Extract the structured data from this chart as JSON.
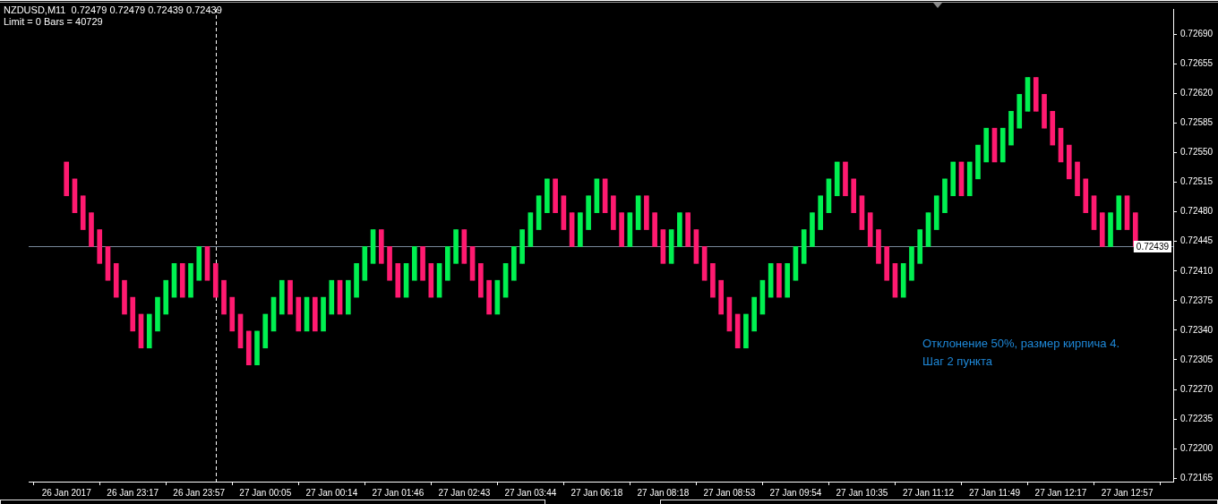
{
  "chart_data": {
    "type": "candlestick",
    "title": "NZDUSD,M11  0.72479 0.72479 0.72439 0.72439",
    "subtitle": "Limit = 0 Bars = 40729",
    "categories": [
      "26 Jan 2017",
      null,
      null,
      null,
      null,
      null,
      null,
      null,
      "26 Jan 23:17",
      null,
      null,
      null,
      null,
      null,
      null,
      null,
      "26 Jan 23:57",
      null,
      null,
      null,
      null,
      null,
      null,
      null,
      "27 Jan 00:05",
      null,
      null,
      null,
      null,
      null,
      null,
      null,
      "27 Jan 00:14",
      null,
      null,
      null,
      null,
      null,
      null,
      null,
      "27 Jan 01:46",
      null,
      null,
      null,
      null,
      null,
      null,
      null,
      "27 Jan 02:43",
      null,
      null,
      null,
      null,
      null,
      null,
      null,
      "27 Jan 03:44",
      null,
      null,
      null,
      null,
      null,
      null,
      null,
      "27 Jan 06:18",
      null,
      null,
      null,
      null,
      null,
      null,
      null,
      "27 Jan 08:18",
      null,
      null,
      null,
      null,
      null,
      null,
      null,
      "27 Jan 08:53",
      null,
      null,
      null,
      null,
      null,
      null,
      null,
      "27 Jan 09:54",
      null,
      null,
      null,
      null,
      null,
      null,
      null,
      "27 Jan 10:35",
      null,
      null,
      null,
      null,
      null,
      null,
      null,
      "27 Jan 11:12",
      null,
      null,
      null,
      null,
      null,
      null,
      null,
      "27 Jan 11:49",
      null,
      null,
      null,
      null,
      null,
      null,
      null,
      "27 Jan 12:17",
      null,
      null,
      null,
      null,
      null,
      null,
      null,
      "27 Jan 12:57",
      null
    ],
    "ohlc": [
      [
        0.72539,
        0.72539,
        0.72499,
        0.72499
      ],
      [
        0.72519,
        0.72519,
        0.72479,
        0.72479
      ],
      [
        0.72499,
        0.72499,
        0.72459,
        0.72459
      ],
      [
        0.72479,
        0.72479,
        0.72439,
        0.72439
      ],
      [
        0.72459,
        0.72459,
        0.72419,
        0.72419
      ],
      [
        0.72439,
        0.72439,
        0.72399,
        0.72399
      ],
      [
        0.72419,
        0.72419,
        0.72379,
        0.72379
      ],
      [
        0.72399,
        0.72399,
        0.72359,
        0.72359
      ],
      [
        0.72379,
        0.72379,
        0.72339,
        0.72339
      ],
      [
        0.72359,
        0.72359,
        0.72319,
        0.72319
      ],
      [
        0.72319,
        0.72359,
        0.72319,
        0.72359
      ],
      [
        0.72339,
        0.72379,
        0.72339,
        0.72379
      ],
      [
        0.72359,
        0.72399,
        0.72359,
        0.72399
      ],
      [
        0.72379,
        0.72419,
        0.72379,
        0.72419
      ],
      [
        0.72419,
        0.72419,
        0.72379,
        0.72379
      ],
      [
        0.72379,
        0.72419,
        0.72379,
        0.72419
      ],
      [
        0.72399,
        0.72439,
        0.72399,
        0.72439
      ],
      [
        0.72439,
        0.72439,
        0.72399,
        0.72399
      ],
      [
        0.72419,
        0.72419,
        0.72379,
        0.72379
      ],
      [
        0.72399,
        0.72399,
        0.72359,
        0.72359
      ],
      [
        0.72379,
        0.72379,
        0.72339,
        0.72339
      ],
      [
        0.72359,
        0.72359,
        0.72319,
        0.72319
      ],
      [
        0.72339,
        0.72339,
        0.72299,
        0.72299
      ],
      [
        0.72299,
        0.72339,
        0.72299,
        0.72339
      ],
      [
        0.72319,
        0.72359,
        0.72319,
        0.72359
      ],
      [
        0.72339,
        0.72379,
        0.72339,
        0.72379
      ],
      [
        0.72359,
        0.72399,
        0.72359,
        0.72399
      ],
      [
        0.72399,
        0.72399,
        0.72359,
        0.72359
      ],
      [
        0.72379,
        0.72379,
        0.72339,
        0.72339
      ],
      [
        0.72339,
        0.72379,
        0.72339,
        0.72379
      ],
      [
        0.72379,
        0.72379,
        0.72339,
        0.72339
      ],
      [
        0.72339,
        0.72379,
        0.72339,
        0.72379
      ],
      [
        0.72359,
        0.72399,
        0.72359,
        0.72399
      ],
      [
        0.72399,
        0.72399,
        0.72359,
        0.72359
      ],
      [
        0.72359,
        0.72399,
        0.72359,
        0.72399
      ],
      [
        0.72379,
        0.72419,
        0.72379,
        0.72419
      ],
      [
        0.72399,
        0.72439,
        0.72399,
        0.72439
      ],
      [
        0.72419,
        0.72459,
        0.72419,
        0.72459
      ],
      [
        0.72459,
        0.72459,
        0.72419,
        0.72419
      ],
      [
        0.72439,
        0.72439,
        0.72399,
        0.72399
      ],
      [
        0.72419,
        0.72419,
        0.72379,
        0.72379
      ],
      [
        0.72379,
        0.72419,
        0.72379,
        0.72419
      ],
      [
        0.72399,
        0.72439,
        0.72399,
        0.72439
      ],
      [
        0.72439,
        0.72439,
        0.72399,
        0.72399
      ],
      [
        0.72419,
        0.72419,
        0.72379,
        0.72379
      ],
      [
        0.72379,
        0.72419,
        0.72379,
        0.72419
      ],
      [
        0.72399,
        0.72439,
        0.72399,
        0.72439
      ],
      [
        0.72419,
        0.72459,
        0.72419,
        0.72459
      ],
      [
        0.72459,
        0.72459,
        0.72419,
        0.72419
      ],
      [
        0.72439,
        0.72439,
        0.72399,
        0.72399
      ],
      [
        0.72419,
        0.72419,
        0.72379,
        0.72379
      ],
      [
        0.72399,
        0.72399,
        0.72359,
        0.72359
      ],
      [
        0.72359,
        0.72399,
        0.72359,
        0.72399
      ],
      [
        0.72379,
        0.72419,
        0.72379,
        0.72419
      ],
      [
        0.72399,
        0.72439,
        0.72399,
        0.72439
      ],
      [
        0.72419,
        0.72459,
        0.72419,
        0.72459
      ],
      [
        0.72439,
        0.72479,
        0.72439,
        0.72479
      ],
      [
        0.72459,
        0.72499,
        0.72459,
        0.72499
      ],
      [
        0.72479,
        0.72519,
        0.72479,
        0.72519
      ],
      [
        0.72519,
        0.72519,
        0.72479,
        0.72479
      ],
      [
        0.72499,
        0.72499,
        0.72459,
        0.72459
      ],
      [
        0.72479,
        0.72479,
        0.72439,
        0.72439
      ],
      [
        0.72439,
        0.72479,
        0.72439,
        0.72479
      ],
      [
        0.72459,
        0.72499,
        0.72459,
        0.72499
      ],
      [
        0.72479,
        0.72519,
        0.72479,
        0.72519
      ],
      [
        0.72519,
        0.72519,
        0.72479,
        0.72479
      ],
      [
        0.72499,
        0.72499,
        0.72459,
        0.72459
      ],
      [
        0.72479,
        0.72479,
        0.72439,
        0.72439
      ],
      [
        0.72439,
        0.72479,
        0.72439,
        0.72479
      ],
      [
        0.72459,
        0.72499,
        0.72459,
        0.72499
      ],
      [
        0.72499,
        0.72499,
        0.72459,
        0.72459
      ],
      [
        0.72479,
        0.72479,
        0.72439,
        0.72439
      ],
      [
        0.72459,
        0.72459,
        0.72419,
        0.72419
      ],
      [
        0.72419,
        0.72459,
        0.72419,
        0.72459
      ],
      [
        0.72439,
        0.72479,
        0.72439,
        0.72479
      ],
      [
        0.72479,
        0.72479,
        0.72439,
        0.72439
      ],
      [
        0.72459,
        0.72459,
        0.72419,
        0.72419
      ],
      [
        0.72439,
        0.72439,
        0.72399,
        0.72399
      ],
      [
        0.72419,
        0.72419,
        0.72379,
        0.72379
      ],
      [
        0.72399,
        0.72399,
        0.72359,
        0.72359
      ],
      [
        0.72379,
        0.72379,
        0.72339,
        0.72339
      ],
      [
        0.72359,
        0.72359,
        0.72319,
        0.72319
      ],
      [
        0.72319,
        0.72359,
        0.72319,
        0.72359
      ],
      [
        0.72339,
        0.72379,
        0.72339,
        0.72379
      ],
      [
        0.72359,
        0.72399,
        0.72359,
        0.72399
      ],
      [
        0.72379,
        0.72419,
        0.72379,
        0.72419
      ],
      [
        0.72419,
        0.72419,
        0.72379,
        0.72379
      ],
      [
        0.72379,
        0.72419,
        0.72379,
        0.72419
      ],
      [
        0.72399,
        0.72439,
        0.72399,
        0.72439
      ],
      [
        0.72419,
        0.72459,
        0.72419,
        0.72459
      ],
      [
        0.72439,
        0.72479,
        0.72439,
        0.72479
      ],
      [
        0.72459,
        0.72499,
        0.72459,
        0.72499
      ],
      [
        0.72479,
        0.72519,
        0.72479,
        0.72519
      ],
      [
        0.72499,
        0.72539,
        0.72499,
        0.72539
      ],
      [
        0.72539,
        0.72539,
        0.72499,
        0.72499
      ],
      [
        0.72519,
        0.72519,
        0.72479,
        0.72479
      ],
      [
        0.72499,
        0.72499,
        0.72459,
        0.72459
      ],
      [
        0.72479,
        0.72479,
        0.72439,
        0.72439
      ],
      [
        0.72459,
        0.72459,
        0.72419,
        0.72419
      ],
      [
        0.72439,
        0.72439,
        0.72399,
        0.72399
      ],
      [
        0.72419,
        0.72419,
        0.72379,
        0.72379
      ],
      [
        0.72379,
        0.72419,
        0.72379,
        0.72419
      ],
      [
        0.72399,
        0.72439,
        0.72399,
        0.72439
      ],
      [
        0.72419,
        0.72459,
        0.72419,
        0.72459
      ],
      [
        0.72439,
        0.72479,
        0.72439,
        0.72479
      ],
      [
        0.72459,
        0.72499,
        0.72459,
        0.72499
      ],
      [
        0.72479,
        0.72519,
        0.72479,
        0.72519
      ],
      [
        0.72499,
        0.72539,
        0.72499,
        0.72539
      ],
      [
        0.72539,
        0.72539,
        0.72499,
        0.72499
      ],
      [
        0.72499,
        0.72539,
        0.72499,
        0.72539
      ],
      [
        0.72519,
        0.72559,
        0.72519,
        0.72559
      ],
      [
        0.72539,
        0.72579,
        0.72539,
        0.72579
      ],
      [
        0.72579,
        0.72579,
        0.72539,
        0.72539
      ],
      [
        0.72539,
        0.72579,
        0.72539,
        0.72579
      ],
      [
        0.72559,
        0.72599,
        0.72559,
        0.72599
      ],
      [
        0.72579,
        0.72619,
        0.72579,
        0.72619
      ],
      [
        0.72599,
        0.72639,
        0.72599,
        0.72639
      ],
      [
        0.72639,
        0.72639,
        0.72599,
        0.72599
      ],
      [
        0.72619,
        0.72619,
        0.72579,
        0.72579
      ],
      [
        0.72599,
        0.72599,
        0.72559,
        0.72559
      ],
      [
        0.72579,
        0.72579,
        0.72539,
        0.72539
      ],
      [
        0.72559,
        0.72559,
        0.72519,
        0.72519
      ],
      [
        0.72539,
        0.72539,
        0.72499,
        0.72499
      ],
      [
        0.72519,
        0.72519,
        0.72479,
        0.72479
      ],
      [
        0.72499,
        0.72499,
        0.72459,
        0.72459
      ],
      [
        0.72479,
        0.72479,
        0.72439,
        0.72439
      ],
      [
        0.72439,
        0.72479,
        0.72439,
        0.72479
      ],
      [
        0.72459,
        0.72499,
        0.72459,
        0.72499
      ],
      [
        0.72499,
        0.72499,
        0.72459,
        0.72459
      ],
      [
        0.72479,
        0.72479,
        0.72439,
        0.72439
      ]
    ],
    "colors": [
      "#ff1a70",
      "#ff1a70",
      "#ff1a70",
      "#ff1a70",
      "#ff1a70",
      "#ff1a70",
      "#ff1a70",
      "#ff1a70",
      "#ff1a70",
      "#ff1a70",
      "#00f050",
      "#00f050",
      "#00f050",
      "#00f050",
      "#ff1a70",
      "#00f050",
      "#00f050",
      "#ff1a70",
      "#ff1a70",
      "#ff1a70",
      "#ff1a70",
      "#ff1a70",
      "#ff1a70",
      "#00f050",
      "#00f050",
      "#00f050",
      "#00f050",
      "#ff1a70",
      "#ff1a70",
      "#00f050",
      "#ff1a70",
      "#00f050",
      "#00f050",
      "#ff1a70",
      "#00f050",
      "#00f050",
      "#00f050",
      "#00f050",
      "#ff1a70",
      "#ff1a70",
      "#ff1a70",
      "#00f050",
      "#00f050",
      "#ff1a70",
      "#ff1a70",
      "#00f050",
      "#00f050",
      "#00f050",
      "#ff1a70",
      "#ff1a70",
      "#ff1a70",
      "#ff1a70",
      "#00f050",
      "#00f050",
      "#00f050",
      "#00f050",
      "#00f050",
      "#00f050",
      "#00f050",
      "#ff1a70",
      "#ff1a70",
      "#ff1a70",
      "#00f050",
      "#00f050",
      "#00f050",
      "#ff1a70",
      "#ff1a70",
      "#ff1a70",
      "#00f050",
      "#00f050",
      "#ff1a70",
      "#ff1a70",
      "#ff1a70",
      "#00f050",
      "#00f050",
      "#ff1a70",
      "#ff1a70",
      "#ff1a70",
      "#ff1a70",
      "#ff1a70",
      "#ff1a70",
      "#ff1a70",
      "#00f050",
      "#00f050",
      "#00f050",
      "#00f050",
      "#ff1a70",
      "#00f050",
      "#00f050",
      "#00f050",
      "#00f050",
      "#00f050",
      "#00f050",
      "#00f050",
      "#ff1a70",
      "#ff1a70",
      "#ff1a70",
      "#ff1a70",
      "#ff1a70",
      "#ff1a70",
      "#ff1a70",
      "#00f050",
      "#00f050",
      "#00f050",
      "#00f050",
      "#00f050",
      "#00f050",
      "#00f050",
      "#ff1a70",
      "#00f050",
      "#00f050",
      "#00f050",
      "#ff1a70",
      "#00f050",
      "#00f050",
      "#00f050",
      "#00f050",
      "#ff1a70",
      "#ff1a70",
      "#ff1a70",
      "#ff1a70",
      "#ff1a70",
      "#ff1a70",
      "#ff1a70",
      "#ff1a70",
      "#ff1a70",
      "#00f050",
      "#00f050",
      "#ff1a70",
      "#ff1a70"
    ],
    "ylim": [
      0.72161,
      0.7272
    ],
    "yticks": [
      {
        "value": 0.72165,
        "label": "0.72165"
      },
      {
        "value": 0.722,
        "label": "0.72200"
      },
      {
        "value": 0.72235,
        "label": "0.72235"
      },
      {
        "value": 0.7227,
        "label": "0.72270"
      },
      {
        "value": 0.72305,
        "label": "0.72305"
      },
      {
        "value": 0.7234,
        "label": "0.72340"
      },
      {
        "value": 0.72375,
        "label": "0.72375"
      },
      {
        "value": 0.7241,
        "label": "0.72410"
      },
      {
        "value": 0.72445,
        "label": "0.72445"
      },
      {
        "value": 0.7248,
        "label": "0.72480"
      },
      {
        "value": 0.72515,
        "label": "0.72515"
      },
      {
        "value": 0.7255,
        "label": "0.72550"
      },
      {
        "value": 0.72585,
        "label": "0.72585"
      },
      {
        "value": 0.7262,
        "label": "0.72620"
      },
      {
        "value": 0.72655,
        "label": "0.72655"
      },
      {
        "value": 0.7269,
        "label": "0.72690"
      }
    ],
    "ref_lines": [
      {
        "axis": "y",
        "value": 0.72439,
        "label": "0.72439",
        "color": "#778899"
      }
    ],
    "annotations": [
      "Отклонение 50%, размер кирпича 4.",
      "Шаг 2 пункта"
    ]
  }
}
